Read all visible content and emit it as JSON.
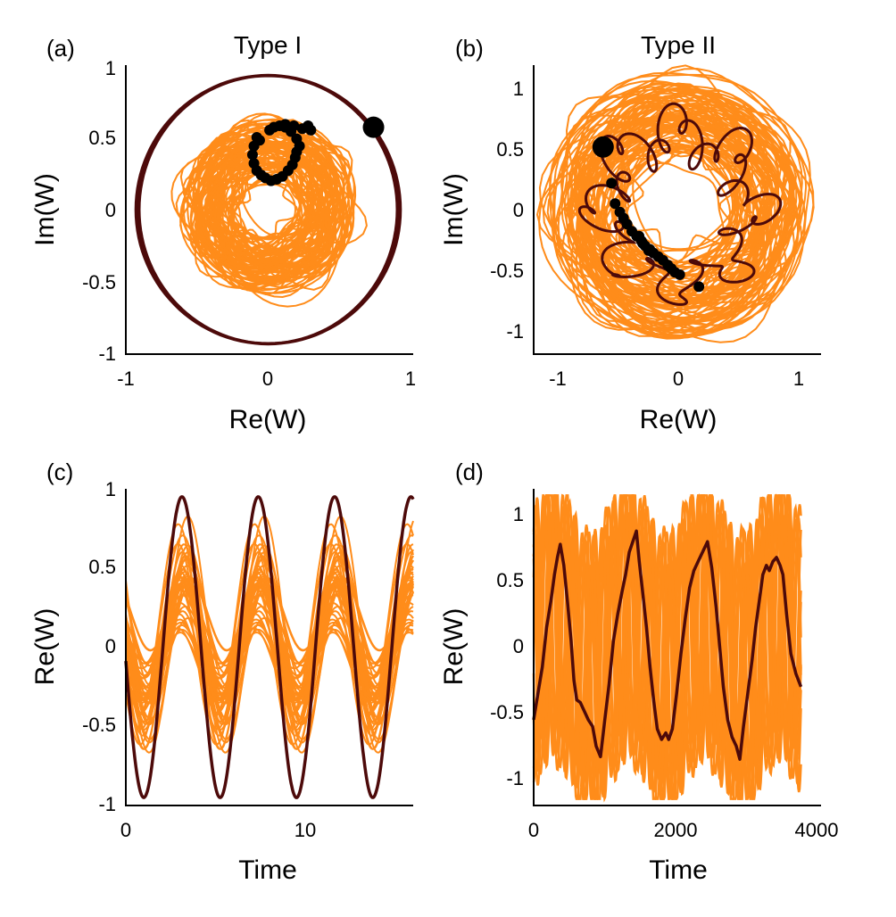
{
  "colors": {
    "orange": "#ff8c1a",
    "dark": "#4d0a0a",
    "dots": "#000000"
  },
  "chart_data": [
    {
      "panel": "(a)",
      "type": "scatter",
      "title": "Type I",
      "xlabel": "Re(W)",
      "ylabel": "Im(W)",
      "xlim": [
        -1,
        1
      ],
      "ylim": [
        -1,
        1
      ],
      "xticks": [
        "-1",
        "0",
        "1"
      ],
      "yticks": [
        "1",
        "0.5",
        "0",
        "-0.5",
        "-1"
      ],
      "series": [
        {
          "kind": "cloud",
          "center": [
            0,
            0.02
          ],
          "radius": 0.56,
          "wobble": 0.07
        },
        {
          "kind": "orbit",
          "radius": 0.93,
          "center": [
            0,
            0
          ]
        },
        {
          "kind": "dots",
          "points": [
            [
              -0.08,
              0.5
            ],
            [
              -0.1,
              0.44
            ],
            [
              -0.11,
              0.38
            ],
            [
              -0.1,
              0.32
            ],
            [
              -0.08,
              0.27
            ],
            [
              -0.05,
              0.24
            ],
            [
              -0.02,
              0.22
            ],
            [
              0.02,
              0.2
            ],
            [
              0.06,
              0.21
            ],
            [
              0.1,
              0.23
            ],
            [
              0.14,
              0.27
            ],
            [
              0.17,
              0.31
            ],
            [
              0.19,
              0.36
            ],
            [
              0.2,
              0.4
            ],
            [
              0.22,
              0.44
            ],
            [
              0.2,
              0.49
            ],
            [
              0.16,
              0.54
            ],
            [
              0.12,
              0.57
            ],
            [
              0.08,
              0.58
            ],
            [
              0.04,
              0.57
            ],
            [
              0.01,
              0.55
            ],
            [
              0.12,
              0.59
            ],
            [
              0.18,
              0.58
            ],
            [
              0.24,
              0.56
            ],
            [
              0.28,
              0.58
            ],
            [
              0.3,
              0.55
            ],
            [
              -0.06,
              0.48
            ]
          ]
        },
        {
          "kind": "bigdot",
          "points": [
            [
              0.74,
              0.57
            ]
          ]
        }
      ]
    },
    {
      "panel": "(b)",
      "type": "scatter",
      "title": "Type II",
      "xlabel": "Re(W)",
      "ylabel": "Im(W)",
      "xlim": [
        -1.2,
        1.2
      ],
      "ylim": [
        -1.2,
        1.2
      ],
      "xticks": [
        "-1",
        "0",
        "1"
      ],
      "yticks": [
        "1",
        "0.5",
        "0",
        "-0.5",
        "-1"
      ],
      "series": [
        {
          "kind": "cloud",
          "center": [
            0,
            0
          ],
          "radius": 1.08,
          "wobble": 0.12
        },
        {
          "kind": "star",
          "radius": 0.62,
          "lobes": 8
        },
        {
          "kind": "dots",
          "points": [
            [
              -0.55,
              0.22
            ],
            [
              -0.52,
              0.05
            ],
            [
              -0.48,
              -0.02
            ],
            [
              -0.45,
              -0.07
            ],
            [
              -0.42,
              -0.12
            ],
            [
              -0.38,
              -0.18
            ],
            [
              -0.34,
              -0.22
            ],
            [
              -0.3,
              -0.26
            ],
            [
              -0.27,
              -0.3
            ],
            [
              -0.23,
              -0.33
            ],
            [
              -0.2,
              -0.36
            ],
            [
              -0.16,
              -0.39
            ],
            [
              -0.12,
              -0.42
            ],
            [
              -0.08,
              -0.46
            ],
            [
              -0.05,
              -0.49
            ],
            [
              -0.02,
              -0.52
            ],
            [
              0.02,
              -0.54
            ],
            [
              -0.32,
              -0.22
            ],
            [
              -0.29,
              -0.28
            ],
            [
              -0.24,
              -0.34
            ],
            [
              0.18,
              -0.64
            ]
          ]
        },
        {
          "kind": "bigdot",
          "points": [
            [
              -0.62,
              0.52
            ]
          ]
        }
      ]
    },
    {
      "panel": "(c)",
      "type": "line",
      "xlabel": "Time",
      "ylabel": "Re(W)",
      "xlim": [
        0,
        16
      ],
      "ylim": [
        -1,
        1
      ],
      "xticks": [
        "0",
        "10"
      ],
      "yticks": [
        "1",
        "0.5",
        "0",
        "-0.5",
        "-1"
      ],
      "series": [
        {
          "kind": "band",
          "period": 4.25,
          "phase": 3.2,
          "mid": 0.04,
          "amp_lo": 0.16,
          "amp_hi": 0.6
        },
        {
          "kind": "line",
          "period": 4.25,
          "phase": 1.0,
          "amp": 0.95,
          "x_end": 16
        }
      ]
    },
    {
      "panel": "(d)",
      "type": "line",
      "xlabel": "Time",
      "ylabel": "Re(W)",
      "xlim": [
        0,
        4000
      ],
      "ylim": [
        -1.2,
        1.2
      ],
      "xticks": [
        "0",
        "2000",
        "4000"
      ],
      "yticks": [
        "1",
        "0.5",
        "0",
        "-0.5",
        "-1"
      ],
      "series": [
        {
          "kind": "fast",
          "x_end": 3720,
          "period": 270
        },
        {
          "kind": "slow",
          "x_end": 3720,
          "points": [
            [
              0,
              -0.55
            ],
            [
              60,
              -0.35
            ],
            [
              120,
              -0.15
            ],
            [
              180,
              0.15
            ],
            [
              240,
              0.35
            ],
            [
              290,
              0.55
            ],
            [
              330,
              0.68
            ],
            [
              370,
              0.78
            ],
            [
              420,
              0.62
            ],
            [
              470,
              0.35
            ],
            [
              520,
              0.05
            ],
            [
              560,
              -0.25
            ],
            [
              600,
              -0.4
            ],
            [
              650,
              -0.42
            ],
            [
              700,
              -0.48
            ],
            [
              760,
              -0.55
            ],
            [
              820,
              -0.6
            ],
            [
              870,
              -0.75
            ],
            [
              930,
              -0.83
            ],
            [
              990,
              -0.55
            ],
            [
              1050,
              -0.28
            ],
            [
              1110,
              0.05
            ],
            [
              1170,
              0.25
            ],
            [
              1230,
              0.42
            ],
            [
              1280,
              0.55
            ],
            [
              1330,
              0.72
            ],
            [
              1380,
              0.8
            ],
            [
              1430,
              0.88
            ],
            [
              1470,
              0.65
            ],
            [
              1520,
              0.4
            ],
            [
              1570,
              0.15
            ],
            [
              1620,
              -0.15
            ],
            [
              1670,
              -0.4
            ],
            [
              1720,
              -0.62
            ],
            [
              1780,
              -0.7
            ],
            [
              1840,
              -0.65
            ],
            [
              1880,
              -0.7
            ],
            [
              1930,
              -0.62
            ],
            [
              1990,
              -0.35
            ],
            [
              2050,
              -0.05
            ],
            [
              2110,
              0.22
            ],
            [
              2170,
              0.45
            ],
            [
              2230,
              0.58
            ],
            [
              2290,
              0.65
            ],
            [
              2350,
              0.72
            ],
            [
              2420,
              0.8
            ],
            [
              2480,
              0.6
            ],
            [
              2540,
              0.3
            ],
            [
              2590,
              0.0
            ],
            [
              2640,
              -0.3
            ],
            [
              2700,
              -0.55
            ],
            [
              2760,
              -0.68
            ],
            [
              2820,
              -0.75
            ],
            [
              2870,
              -0.85
            ],
            [
              2920,
              -0.6
            ],
            [
              2980,
              -0.35
            ],
            [
              3040,
              -0.1
            ],
            [
              3090,
              0.15
            ],
            [
              3140,
              0.35
            ],
            [
              3190,
              0.55
            ],
            [
              3240,
              0.62
            ],
            [
              3280,
              0.58
            ],
            [
              3330,
              0.65
            ],
            [
              3380,
              0.68
            ],
            [
              3430,
              0.62
            ],
            [
              3470,
              0.55
            ],
            [
              3520,
              0.25
            ],
            [
              3580,
              -0.05
            ],
            [
              3650,
              -0.2
            ],
            [
              3720,
              -0.3
            ]
          ]
        }
      ]
    }
  ]
}
